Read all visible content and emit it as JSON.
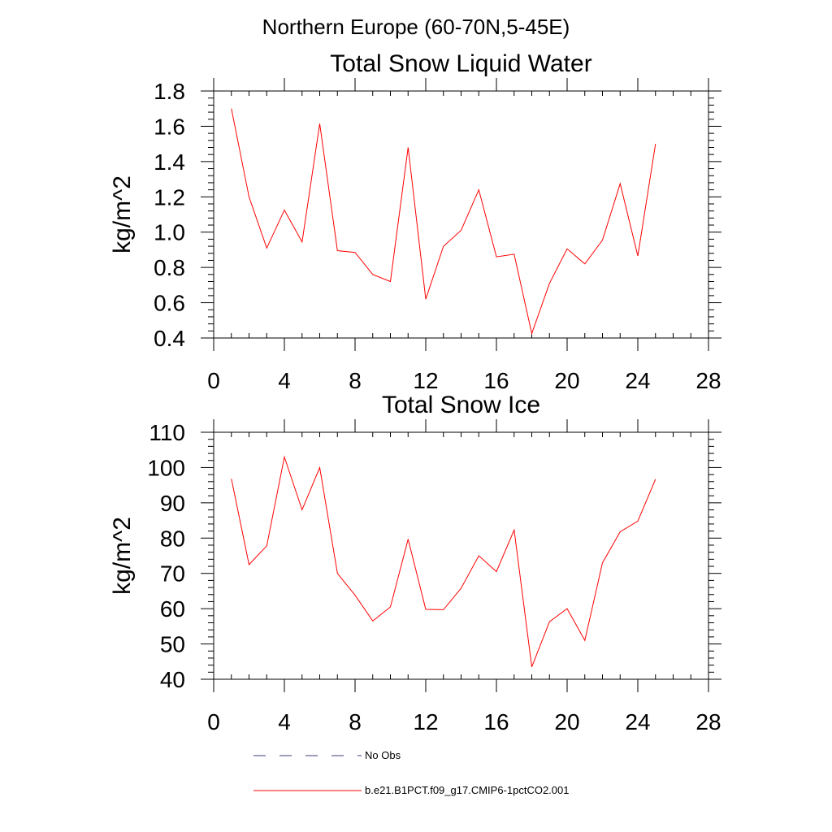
{
  "figure": {
    "title": "Northern Europe (60-70N,5-45E)"
  },
  "chart_data": [
    {
      "type": "line",
      "title": "Total Snow Liquid Water",
      "xlabel": "",
      "ylabel": "kg/m^2",
      "xlim": [
        0,
        28
      ],
      "ylim": [
        0.4,
        1.8
      ],
      "xticks": [
        0,
        4,
        8,
        12,
        16,
        20,
        24,
        28
      ],
      "xtick_labels": [
        "0",
        "4",
        "8",
        "12",
        "16",
        "20",
        "24",
        "28"
      ],
      "yticks": [
        0.4,
        0.6,
        0.8,
        1.0,
        1.2,
        1.4,
        1.6,
        1.8
      ],
      "ytick_labels": [
        "0.4",
        "0.6",
        "0.8",
        "1.0",
        "1.2",
        "1.4",
        "1.6",
        "1.8"
      ],
      "grid": false,
      "series": [
        {
          "name": "b.e21.B1PCT.f09_g17.CMIP6-1pctCO2.001",
          "color": "#ff0000",
          "x": [
            1,
            2,
            3,
            4,
            5,
            6,
            7,
            8,
            9,
            10,
            11,
            12,
            13,
            14,
            15,
            16,
            17,
            18,
            19,
            20,
            21,
            22,
            23,
            24,
            25
          ],
          "y": [
            1.7,
            1.2,
            0.91,
            1.125,
            0.945,
            1.615,
            0.895,
            0.885,
            0.76,
            0.72,
            1.48,
            0.62,
            0.92,
            1.01,
            1.24,
            0.86,
            0.875,
            0.425,
            0.71,
            0.905,
            0.82,
            0.955,
            1.275,
            0.865,
            1.5
          ]
        }
      ]
    },
    {
      "type": "line",
      "title": "Total Snow Ice",
      "xlabel": "",
      "ylabel": "kg/m^2",
      "xlim": [
        0,
        28
      ],
      "ylim": [
        40,
        110
      ],
      "xticks": [
        0,
        4,
        8,
        12,
        16,
        20,
        24,
        28
      ],
      "xtick_labels": [
        "0",
        "4",
        "8",
        "12",
        "16",
        "20",
        "24",
        "28"
      ],
      "yticks": [
        40,
        50,
        60,
        70,
        80,
        90,
        100,
        110
      ],
      "ytick_labels": [
        "40",
        "50",
        "60",
        "70",
        "80",
        "90",
        "100",
        "110"
      ],
      "grid": false,
      "series": [
        {
          "name": "b.e21.B1PCT.f09_g17.CMIP6-1pctCO2.001",
          "color": "#ff0000",
          "x": [
            1,
            2,
            3,
            4,
            5,
            6,
            7,
            8,
            9,
            10,
            11,
            12,
            13,
            14,
            15,
            16,
            17,
            18,
            19,
            20,
            21,
            22,
            23,
            24,
            25
          ],
          "y": [
            96.8,
            72.5,
            77.8,
            103.0,
            88.0,
            100.0,
            70.0,
            63.8,
            56.5,
            60.5,
            79.7,
            59.8,
            59.7,
            65.8,
            75.0,
            70.5,
            82.3,
            43.5,
            56.3,
            60.0,
            51.0,
            73.0,
            81.8,
            84.8,
            96.7
          ]
        }
      ]
    }
  ],
  "legend": {
    "entries": [
      {
        "label": "No Obs",
        "color": "#3b3b7a",
        "style": "dashed"
      },
      {
        "label": "b.e21.B1PCT.f09_g17.CMIP6-1pctCO2.001",
        "color": "#ff0000",
        "style": "solid"
      }
    ]
  }
}
